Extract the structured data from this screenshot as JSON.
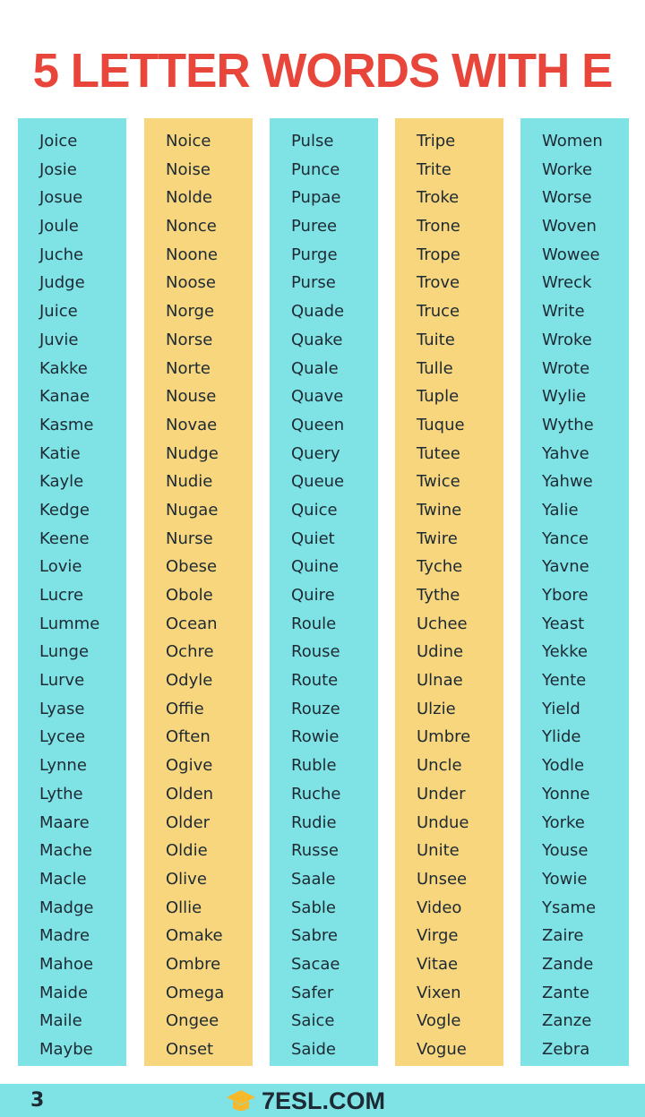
{
  "title": "5 LETTER WORDS WITH E",
  "columns": [
    {
      "color": "#7fe3e6",
      "words": [
        "Joice",
        "Josie",
        "Josue",
        "Joule",
        "Juche",
        "Judge",
        "Juice",
        "Juvie",
        "Kakke",
        "Kanae",
        "Kasme",
        "Katie",
        "Kayle",
        "Kedge",
        "Keene",
        "Lovie",
        "Lucre",
        "Lumme",
        "Lunge",
        "Lurve",
        "Lyase",
        "Lycee",
        "Lynne",
        "Lythe",
        "Maare",
        "Mache",
        "Macle",
        "Madge",
        "Madre",
        "Mahoe",
        "Maide",
        "Maile",
        "Maybe"
      ]
    },
    {
      "color": "#f8d67e",
      "words": [
        "Noice",
        "Noise",
        "Nolde",
        "Nonce",
        "Noone",
        "Noose",
        "Norge",
        "Norse",
        "Norte",
        "Nouse",
        "Novae",
        "Nudge",
        "Nudie",
        "Nugae",
        "Nurse",
        "Obese",
        "Obole",
        "Ocean",
        "Ochre",
        "Odyle",
        "Offie",
        "Often",
        "Ogive",
        "Olden",
        "Older",
        "Oldie",
        "Olive",
        "Ollie",
        "Omake",
        "Ombre",
        "Omega",
        "Ongee",
        "Onset"
      ]
    },
    {
      "color": "#7fe3e6",
      "words": [
        "Pulse",
        "Punce",
        "Pupae",
        "Puree",
        "Purge",
        "Purse",
        "Quade",
        "Quake",
        "Quale",
        "Quave",
        "Queen",
        "Query",
        "Queue",
        "Quice",
        "Quiet",
        "Quine",
        "Quire",
        "Roule",
        "Rouse",
        "Route",
        "Rouze",
        "Rowie",
        "Ruble",
        "Ruche",
        "Rudie",
        "Russe",
        "Saale",
        "Sable",
        "Sabre",
        "Sacae",
        "Safer",
        "Saice",
        "Saide"
      ]
    },
    {
      "color": "#f8d67e",
      "words": [
        "Tripe",
        "Trite",
        "Troke",
        "Trone",
        "Trope",
        "Trove",
        "Truce",
        "Tuite",
        "Tulle",
        "Tuple",
        "Tuque",
        "Tutee",
        "Twice",
        "Twine",
        "Twire",
        "Tyche",
        "Tythe",
        "Uchee",
        "Udine",
        "Ulnae",
        "Ulzie",
        "Umbre",
        "Uncle",
        "Under",
        "Undue",
        "Unite",
        "Unsee",
        "Video",
        "Virge",
        "Vitae",
        "Vixen",
        "Vogle",
        "Vogue"
      ]
    },
    {
      "color": "#7fe3e6",
      "words": [
        "Women",
        "Worke",
        "Worse",
        "Woven",
        "Wowee",
        "Wreck",
        "Write",
        "Wroke",
        "Wrote",
        "Wylie",
        "Wythe",
        "Yahve",
        "Yahwe",
        "Yalie",
        "Yance",
        "Yavne",
        "Ybore",
        "Yeast",
        "Yekke",
        "Yente",
        "Yield",
        "Ylide",
        "Yodle",
        "Yonne",
        "Yorke",
        "Youse",
        "Yowie",
        "Ysame",
        "Zaire",
        "Zande",
        "Zante",
        "Zanze",
        "Zebra"
      ]
    }
  ],
  "footer": {
    "page_number": "3",
    "logo": "7ESL.COM",
    "logo_icon": "graduation-cap-icon"
  },
  "colors": {
    "title": "#e8463a",
    "cyan": "#7fe3e6",
    "yellow": "#f8d67e"
  }
}
